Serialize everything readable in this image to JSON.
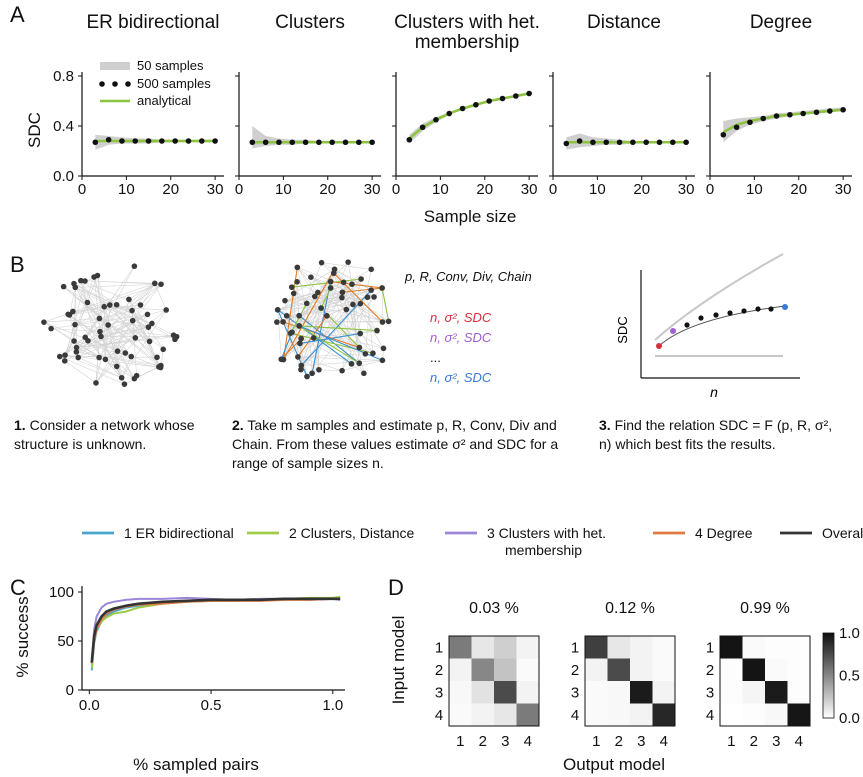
{
  "panel_a": {
    "letter": "A",
    "ylabel": "SDC",
    "xlabel": "Sample size",
    "yticks": [
      "0.0",
      "0.4",
      "0.8"
    ],
    "xticks": [
      "0",
      "10",
      "20",
      "30"
    ],
    "legend": [
      "50 samples",
      "500 samples",
      "analytical"
    ]
  },
  "panel_b": {
    "letter": "B",
    "params_line": "p, R, Conv, Div, Chain",
    "est_lines": [
      {
        "text": "n, σ², SDC",
        "color": "#d6303a"
      },
      {
        "text": "n, σ², SDC",
        "color": "#a25ed4"
      },
      {
        "text": "...",
        "color": "#111111"
      },
      {
        "text": "n, σ², SDC",
        "color": "#3b78d8"
      }
    ],
    "inset_ylabel": "SDC",
    "inset_xlabel": "n",
    "step1_num": "1.",
    "step1_text": "Consider a network whose structure is unknown.",
    "step2_num": "2.",
    "step2_text": "Take m samples and estimate p, R, Conv, Div and Chain. From these values estimate σ² and SDC for a range of sample sizes n.",
    "step3_num": "3.",
    "step3_text": "Find the relation SDC = F (p, R, σ², n) which best fits the results."
  },
  "legend_c": [
    {
      "label": "1   ER bidirectional",
      "color": "#4aa6cf"
    },
    {
      "label": "2   Clusters, Distance",
      "color": "#9fca4a"
    },
    {
      "label": "3   Clusters with het.",
      "label2": "membership",
      "color": "#9b86d9"
    },
    {
      "label": "4   Degree",
      "color": "#e07a43"
    },
    {
      "label": "Overall",
      "color": "#333333"
    }
  ],
  "panel_c": {
    "letter": "C",
    "ylabel": "% success",
    "xlabel": "% sampled pairs",
    "yticks": [
      "0",
      "50",
      "100"
    ],
    "xticks": [
      "0.0",
      "0.5",
      "1.0"
    ]
  },
  "panel_d": {
    "letter": "D",
    "ylabel": "Input model",
    "xlabel": "Output model",
    "row_labels": [
      "1",
      "2",
      "3",
      "4"
    ],
    "col_labels": [
      "1",
      "2",
      "3",
      "4"
    ],
    "colorbar_ticks": [
      "1.0",
      "0.5",
      "0.0"
    ]
  },
  "chart_data": [
    {
      "type": "line",
      "title": "ER bidirectional",
      "x": [
        3,
        6,
        9,
        12,
        15,
        18,
        21,
        24,
        27,
        30
      ],
      "series": [
        {
          "name": "500 samples",
          "values": [
            0.27,
            0.29,
            0.28,
            0.28,
            0.28,
            0.28,
            0.28,
            0.28,
            0.28,
            0.28
          ]
        },
        {
          "name": "analytical",
          "values": [
            0.28,
            0.28,
            0.28,
            0.28,
            0.28,
            0.28,
            0.28,
            0.28,
            0.28,
            0.28
          ]
        }
      ],
      "band_50": {
        "lower": [
          0.21,
          0.25,
          0.26,
          0.26,
          0.26,
          0.27,
          0.27,
          0.27,
          0.27,
          0.27
        ],
        "upper": [
          0.33,
          0.32,
          0.31,
          0.3,
          0.3,
          0.29,
          0.29,
          0.29,
          0.29,
          0.29
        ]
      },
      "xlim": [
        0,
        32
      ],
      "ylim": [
        0,
        0.8
      ]
    },
    {
      "type": "line",
      "title": "Clusters",
      "x": [
        3,
        6,
        9,
        12,
        15,
        18,
        21,
        24,
        27,
        30
      ],
      "series": [
        {
          "name": "500 samples",
          "values": [
            0.27,
            0.27,
            0.27,
            0.27,
            0.27,
            0.27,
            0.27,
            0.27,
            0.27,
            0.27
          ]
        },
        {
          "name": "analytical",
          "values": [
            0.27,
            0.27,
            0.27,
            0.27,
            0.27,
            0.27,
            0.27,
            0.27,
            0.27,
            0.27
          ]
        }
      ],
      "band_50": {
        "lower": [
          0.22,
          0.24,
          0.25,
          0.25,
          0.26,
          0.26,
          0.26,
          0.26,
          0.26,
          0.26
        ],
        "upper": [
          0.4,
          0.32,
          0.3,
          0.29,
          0.29,
          0.28,
          0.28,
          0.28,
          0.28,
          0.28
        ]
      },
      "xlim": [
        0,
        32
      ],
      "ylim": [
        0,
        0.8
      ]
    },
    {
      "type": "line",
      "title": "Clusters with het. membership",
      "x": [
        3,
        6,
        9,
        12,
        15,
        18,
        21,
        24,
        27,
        30
      ],
      "series": [
        {
          "name": "500 samples",
          "values": [
            0.29,
            0.39,
            0.45,
            0.5,
            0.54,
            0.57,
            0.6,
            0.62,
            0.64,
            0.66
          ]
        },
        {
          "name": "analytical",
          "values": [
            0.3,
            0.39,
            0.45,
            0.5,
            0.54,
            0.57,
            0.6,
            0.62,
            0.64,
            0.66
          ]
        }
      ],
      "band_50": {
        "lower": [
          0.26,
          0.36,
          0.43,
          0.49,
          0.53,
          0.56,
          0.59,
          0.61,
          0.63,
          0.65
        ],
        "upper": [
          0.33,
          0.42,
          0.47,
          0.51,
          0.55,
          0.58,
          0.61,
          0.63,
          0.65,
          0.67
        ]
      },
      "xlim": [
        0,
        32
      ],
      "ylim": [
        0,
        0.8
      ]
    },
    {
      "type": "line",
      "title": "Distance",
      "x": [
        3,
        6,
        9,
        12,
        15,
        18,
        21,
        24,
        27,
        30
      ],
      "series": [
        {
          "name": "500 samples",
          "values": [
            0.26,
            0.28,
            0.27,
            0.27,
            0.27,
            0.27,
            0.27,
            0.27,
            0.27,
            0.27
          ]
        },
        {
          "name": "analytical",
          "values": [
            0.27,
            0.27,
            0.27,
            0.27,
            0.27,
            0.27,
            0.27,
            0.27,
            0.27,
            0.27
          ]
        }
      ],
      "band_50": {
        "lower": [
          0.21,
          0.23,
          0.24,
          0.25,
          0.25,
          0.26,
          0.26,
          0.26,
          0.26,
          0.26
        ],
        "upper": [
          0.31,
          0.34,
          0.31,
          0.3,
          0.29,
          0.28,
          0.28,
          0.28,
          0.28,
          0.28
        ]
      },
      "xlim": [
        0,
        32
      ],
      "ylim": [
        0,
        0.8
      ]
    },
    {
      "type": "line",
      "title": "Degree",
      "x": [
        3,
        6,
        9,
        12,
        15,
        18,
        21,
        24,
        27,
        30
      ],
      "series": [
        {
          "name": "500 samples",
          "values": [
            0.33,
            0.39,
            0.43,
            0.46,
            0.48,
            0.49,
            0.5,
            0.51,
            0.52,
            0.53
          ]
        },
        {
          "name": "analytical",
          "values": [
            0.35,
            0.41,
            0.44,
            0.46,
            0.48,
            0.49,
            0.5,
            0.51,
            0.52,
            0.53
          ]
        }
      ],
      "band_50": {
        "lower": [
          0.27,
          0.36,
          0.41,
          0.44,
          0.46,
          0.48,
          0.49,
          0.5,
          0.51,
          0.52
        ],
        "upper": [
          0.44,
          0.46,
          0.47,
          0.48,
          0.5,
          0.51,
          0.52,
          0.53,
          0.54,
          0.55
        ]
      },
      "xlim": [
        0,
        32
      ],
      "ylim": [
        0,
        0.8
      ]
    },
    {
      "type": "line",
      "x": [
        0.01,
        0.02,
        0.03,
        0.05,
        0.07,
        0.1,
        0.15,
        0.2,
        0.3,
        0.4,
        0.5,
        0.6,
        0.7,
        0.8,
        0.9,
        1.0,
        1.03
      ],
      "series": [
        {
          "name": "1   ER bidirectional",
          "values": [
            20,
            48,
            60,
            70,
            76,
            80,
            84,
            86,
            89,
            90,
            91,
            91,
            92,
            92,
            93,
            93,
            93
          ]
        },
        {
          "name": "2   Clusters, Distance",
          "values": [
            22,
            50,
            62,
            70,
            74,
            78,
            80,
            84,
            88,
            90,
            91,
            92,
            93,
            93,
            94,
            94,
            95
          ]
        },
        {
          "name": "3   Clusters with het. membership",
          "values": [
            28,
            62,
            75,
            84,
            88,
            90,
            92,
            93,
            93,
            94,
            93,
            92,
            93,
            93,
            92,
            93,
            92
          ]
        },
        {
          "name": "4   Degree",
          "values": [
            27,
            50,
            62,
            72,
            78,
            82,
            85,
            87,
            88,
            90,
            91,
            91,
            91,
            92,
            92,
            93,
            93
          ]
        },
        {
          "name": "Overall",
          "values": [
            28,
            55,
            66,
            75,
            80,
            83,
            86,
            88,
            90,
            91,
            92,
            92,
            92,
            93,
            93,
            93,
            93
          ]
        }
      ],
      "xlim": [
        -0.03,
        1.05
      ],
      "ylim": [
        0,
        100
      ]
    },
    {
      "type": "heatmap",
      "title": "0.03 %",
      "rows": [
        "1",
        "2",
        "3",
        "4"
      ],
      "cols": [
        "1",
        "2",
        "3",
        "4"
      ],
      "values": [
        [
          0.55,
          0.1,
          0.2,
          0.05
        ],
        [
          0.05,
          0.5,
          0.25,
          0.02
        ],
        [
          0.03,
          0.12,
          0.75,
          0.05
        ],
        [
          0.02,
          0.05,
          0.1,
          0.55
        ]
      ]
    },
    {
      "type": "heatmap",
      "title": "0.12 %",
      "rows": [
        "1",
        "2",
        "3",
        "4"
      ],
      "cols": [
        "1",
        "2",
        "3",
        "4"
      ],
      "values": [
        [
          0.8,
          0.1,
          0.05,
          0.02
        ],
        [
          0.05,
          0.75,
          0.05,
          0.02
        ],
        [
          0.02,
          0.03,
          0.95,
          0.05
        ],
        [
          0.02,
          0.03,
          0.05,
          0.9
        ]
      ]
    },
    {
      "type": "heatmap",
      "title": "0.99 %",
      "rows": [
        "1",
        "2",
        "3",
        "4"
      ],
      "cols": [
        "1",
        "2",
        "3",
        "4"
      ],
      "values": [
        [
          0.98,
          0.02,
          0.01,
          0.01
        ],
        [
          0.01,
          0.98,
          0.02,
          0.01
        ],
        [
          0.01,
          0.04,
          0.95,
          0.01
        ],
        [
          0.0,
          0.01,
          0.03,
          0.97
        ]
      ]
    }
  ]
}
